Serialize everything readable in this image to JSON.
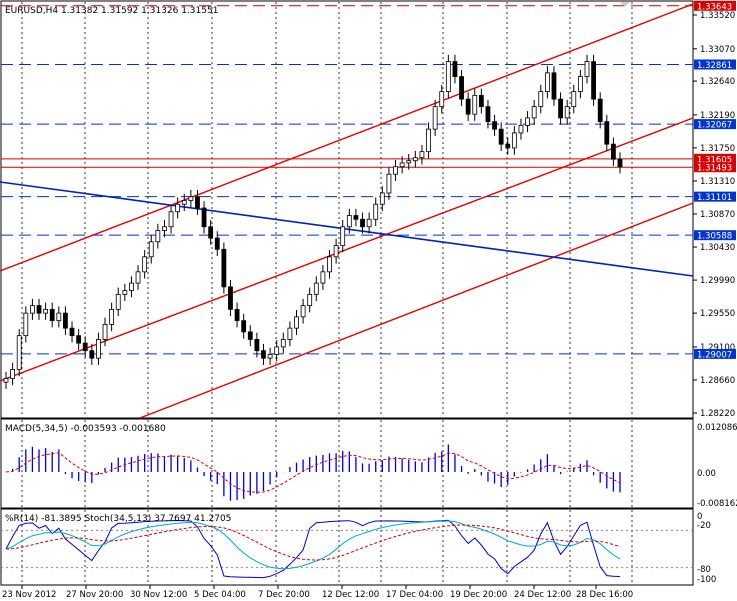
{
  "header": {
    "title": "EURUSD,H4  1.31382 1.31592 1.31326 1.31551"
  },
  "main_chart": {
    "price_scale": [
      "1.33520",
      "1.33070",
      "1.32640",
      "1.32190",
      "1.31750",
      "1.31310",
      "1.30870",
      "1.30430",
      "1.29990",
      "1.29550",
      "1.29100",
      "1.28660",
      "1.28220"
    ],
    "price_range": [
      1.28,
      1.338
    ],
    "level_tags": [
      {
        "label": "1.33643",
        "value": 1.33643,
        "color": "#d40000"
      },
      {
        "label": "1.32861",
        "value": 1.32861,
        "color": "#0033cc"
      },
      {
        "label": "1.32067",
        "value": 1.32067,
        "color": "#0033cc"
      },
      {
        "label": "1.31605",
        "value": 1.31605,
        "color": "#d40000"
      },
      {
        "label": "1.31493",
        "value": 1.31493,
        "color": "#d40000"
      },
      {
        "label": "1.31101",
        "value": 1.31101,
        "color": "#0033cc"
      },
      {
        "label": "1.30588",
        "value": 1.30588,
        "color": "#0033cc"
      },
      {
        "label": "1.29007",
        "value": 1.29007,
        "color": "#0033cc"
      }
    ]
  },
  "macd": {
    "label": "MACD(5,34,5) -0.003593 -0.001680",
    "scale": [
      "0.012086",
      "0.00",
      "-0.008162"
    ]
  },
  "stoch": {
    "label": "%R(14) -81.3895   Stoch(34,5,13) 37.7697 41.2705",
    "scale": [
      "0",
      "-20",
      "-80",
      "-100"
    ]
  },
  "time_axis": [
    "23 Nov 2012",
    "27 Nov 20:00",
    "30 Nov 12:00",
    "5 Dec 04:00",
    "7 Dec 20:00",
    "12 Dec 12:00",
    "17 Dec 04:00",
    "19 Dec 20:00",
    "24 Dec 12:00",
    "28 Dec 16:00"
  ],
  "colors": {
    "up": "#000000",
    "down": "#000000",
    "trend_red": "#e00000",
    "trend_blue": "#0022bb",
    "grid": "#000000",
    "hist": "#0000cc",
    "signal": "#e00000",
    "stoch_main": "#00aacc",
    "stoch_signal": "#cc0000",
    "wpr": "#0000cc"
  }
}
